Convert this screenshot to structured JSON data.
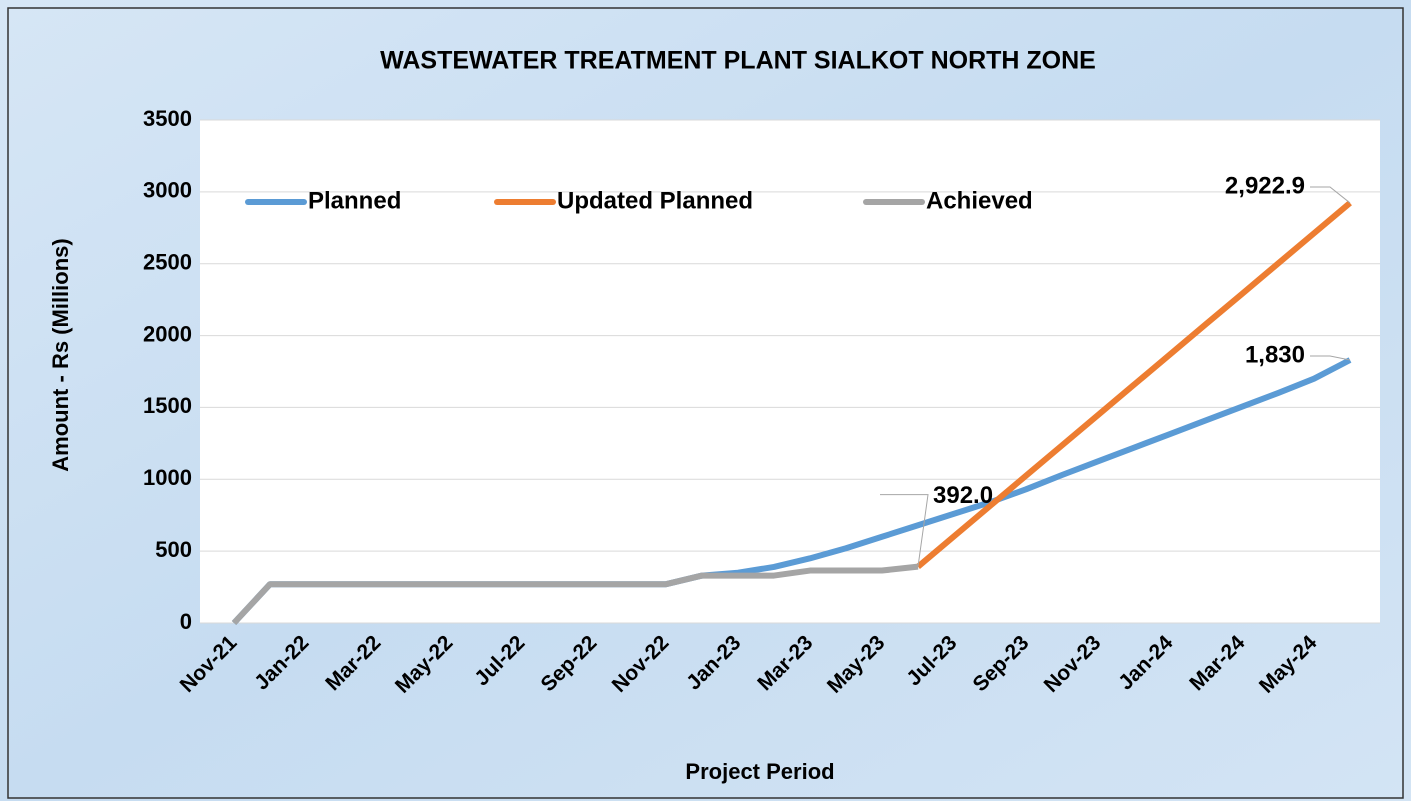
{
  "chart_data": {
    "type": "line",
    "title": "WASTEWATER TREATMENT PLANT SIALKOT NORTH ZONE",
    "x_label": "Project Period",
    "y_label": "Amount - Rs (Millions)",
    "categories": [
      "Nov-21",
      null,
      "Jan-22",
      null,
      "Mar-22",
      null,
      "May-22",
      null,
      "Jul-22",
      null,
      "Sep-22",
      null,
      "Nov-22",
      null,
      "Jan-23",
      null,
      "Mar-23",
      null,
      "May-23",
      null,
      "Jul-23",
      null,
      "Sep-23",
      null,
      "Nov-23",
      null,
      "Jan-24",
      null,
      "Mar-24",
      null,
      "May-24",
      null
    ],
    "ylim": [
      0,
      3500
    ],
    "yticks": [
      0,
      500,
      1000,
      1500,
      2000,
      2500,
      3000,
      3500
    ],
    "grid": true,
    "legend": "top-left",
    "series": [
      {
        "name": "Planned",
        "color": "#5b9bd5",
        "values": [
          0,
          270,
          270,
          270,
          270,
          270,
          270,
          270,
          270,
          270,
          270,
          270,
          270,
          330,
          350,
          390,
          450,
          520,
          600,
          680,
          760,
          840,
          930,
          1030,
          1125,
          1220,
          1315,
          1410,
          1505,
          1600,
          1700,
          1830
        ],
        "value_labels": [
          null,
          null,
          null,
          null,
          null,
          null,
          null,
          null,
          null,
          null,
          null,
          null,
          null,
          null,
          null,
          null,
          null,
          null,
          null,
          null,
          null,
          null,
          null,
          null,
          null,
          null,
          null,
          null,
          null,
          null,
          null,
          "1,830"
        ]
      },
      {
        "name": "Updated Planned",
        "color": "#ed7d31",
        "values": [
          null,
          null,
          null,
          null,
          null,
          null,
          null,
          null,
          null,
          null,
          null,
          null,
          null,
          null,
          null,
          null,
          null,
          null,
          null,
          392,
          603,
          814,
          1025,
          1236,
          1447,
          1658,
          1869,
          2080,
          2290,
          2501,
          2712,
          2922.9
        ],
        "value_labels": [
          null,
          null,
          null,
          null,
          null,
          null,
          null,
          null,
          null,
          null,
          null,
          null,
          null,
          null,
          null,
          null,
          null,
          null,
          null,
          null,
          null,
          null,
          null,
          null,
          null,
          null,
          null,
          null,
          null,
          null,
          null,
          "2,922.9"
        ]
      },
      {
        "name": "Achieved",
        "color": "#a5a5a5",
        "values": [
          0,
          270,
          270,
          270,
          270,
          270,
          270,
          270,
          270,
          270,
          270,
          270,
          270,
          330,
          330,
          330,
          365,
          365,
          365,
          392,
          null,
          null,
          null,
          null,
          null,
          null,
          null,
          null,
          null,
          null,
          null,
          null
        ],
        "value_labels": [
          null,
          null,
          null,
          null,
          null,
          null,
          null,
          null,
          null,
          null,
          null,
          null,
          null,
          null,
          null,
          null,
          null,
          null,
          null,
          "392.0",
          null,
          null,
          null,
          null,
          null,
          null,
          null,
          null,
          null,
          null,
          null,
          null
        ]
      }
    ]
  }
}
